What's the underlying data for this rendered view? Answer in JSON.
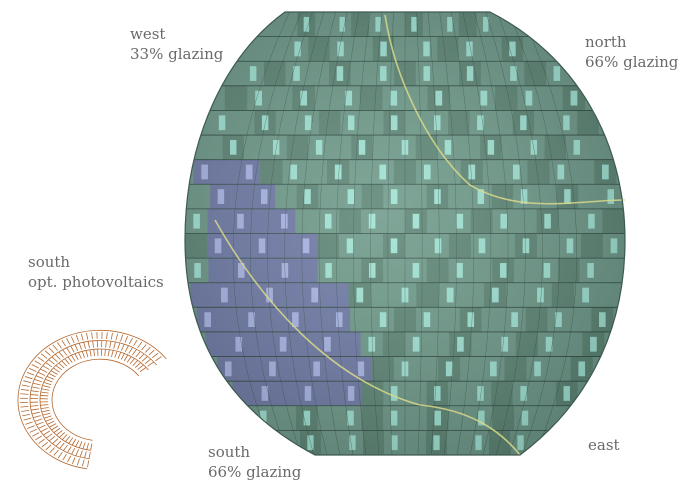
{
  "labels": {
    "west": {
      "line1": "west",
      "line2": "33% glazing"
    },
    "north": {
      "line1": "north",
      "line2": "66% glazing"
    },
    "south_pv": {
      "line1": "south",
      "line2": "opt. photovoltaics"
    },
    "south_glazing": {
      "line1": "south",
      "line2": "66% glazing"
    },
    "east": {
      "line1": "east"
    }
  },
  "colors": {
    "panel": "#6e9a8a",
    "panel_dark": "#5d8676",
    "grid_line": "#2f4a40",
    "glazing": "#9fe3d4",
    "photovoltaic": "#6f7aa6",
    "photovoltaic_glazing": "#a9b6e6",
    "boundary_line": "#d9d98a",
    "sketch": "#b5682e"
  }
}
